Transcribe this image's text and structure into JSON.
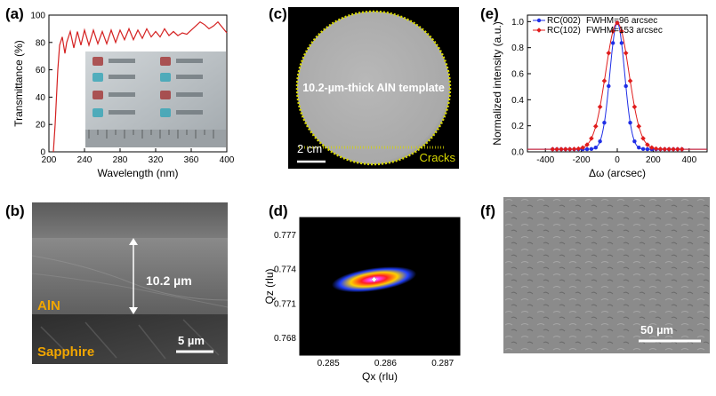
{
  "panels": {
    "a": {
      "letter": "(a)"
    },
    "b": {
      "letter": "(b)",
      "thickness_label": "10.2 µm",
      "layer_top": "AlN",
      "layer_bottom": "Sapphire",
      "scale_bar": "5 µm"
    },
    "c": {
      "letter": "(c)",
      "caption": "10.2-µm-thick AlN template",
      "scale_bar": "2 cm",
      "annotation": "Cracks"
    },
    "d": {
      "letter": "(d)"
    },
    "e": {
      "letter": "(e)"
    },
    "f": {
      "letter": "(f)",
      "scale_bar": "50 µm"
    }
  },
  "chart_data": [
    {
      "id": "a",
      "type": "line",
      "xlabel": "Wavelength (nm)",
      "ylabel": "Transmittance (%)",
      "xlim": [
        200,
        400
      ],
      "ylim": [
        0,
        100
      ],
      "xticks": [
        200,
        240,
        280,
        320,
        360,
        400
      ],
      "yticks": [
        0,
        20,
        40,
        60,
        80,
        100
      ],
      "series": [
        {
          "color": "#d42020",
          "x": [
            205,
            207,
            210,
            212,
            215,
            218,
            220,
            224,
            228,
            232,
            236,
            240,
            245,
            250,
            255,
            260,
            265,
            270,
            275,
            280,
            285,
            290,
            295,
            300,
            305,
            310,
            315,
            320,
            325,
            330,
            335,
            340,
            345,
            350,
            355,
            360,
            365,
            370,
            375,
            380,
            385,
            390,
            395,
            400
          ],
          "y": [
            0,
            20,
            60,
            78,
            84,
            72,
            80,
            88,
            76,
            88,
            78,
            89,
            78,
            89,
            79,
            88,
            79,
            89,
            80,
            89,
            82,
            90,
            82,
            89,
            83,
            90,
            84,
            88,
            84,
            90,
            85,
            88,
            85,
            87,
            86,
            89,
            92,
            95,
            93,
            90,
            92,
            95,
            91,
            87
          ]
        }
      ]
    },
    {
      "id": "d",
      "type": "heatmap",
      "xlabel": "Qx (rlu)",
      "ylabel": "Qz (rlu)",
      "xlim": [
        0.2845,
        0.2873
      ],
      "ylim": [
        0.7665,
        0.7785
      ],
      "xticks": [
        0.285,
        0.286,
        0.287
      ],
      "yticks": [
        0.768,
        0.771,
        0.774,
        0.777
      ],
      "peak": [
        0.2858,
        0.7731
      ]
    },
    {
      "id": "e",
      "type": "line",
      "xlabel": "Δω (arcsec)",
      "ylabel": "Normalized intensity (a.u.)",
      "xlim": [
        -500,
        500
      ],
      "ylim": [
        0,
        1.05
      ],
      "xticks": [
        -400,
        -200,
        0,
        200,
        400
      ],
      "yticks": [
        0.0,
        0.2,
        0.4,
        0.6,
        0.8,
        1.0
      ],
      "series": [
        {
          "name": "RC(002)",
          "fwhm_label": "FWHM=96 arcsec",
          "color": "#1f2ee6",
          "fwhm": 96
        },
        {
          "name": "RC(102)",
          "fwhm_label": "FWHM=153 arcsec",
          "color": "#e01c1c",
          "fwhm": 153
        }
      ]
    }
  ]
}
